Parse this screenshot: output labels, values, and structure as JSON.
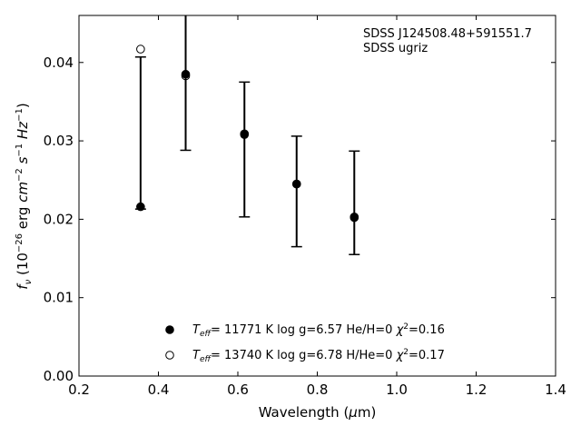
{
  "chart_data": {
    "type": "scatter",
    "xlabel": "Wavelength (μm)",
    "ylabel": "f_ν (10^-26 erg cm^-2 s^-1 Hz^-1)",
    "xlim": [
      0.2,
      1.4
    ],
    "ylim": [
      0.0,
      0.046
    ],
    "xticks": [
      "0.2",
      "0.4",
      "0.6",
      "0.8",
      "1.0",
      "1.2",
      "1.4"
    ],
    "yticks": [
      "0.00",
      "0.01",
      "0.02",
      "0.03",
      "0.04"
    ],
    "grid": false,
    "annotation": [
      "SDSS J124508.48+591551.7",
      "SDSS ugriz"
    ],
    "observed": {
      "x": [
        0.3551,
        0.4686,
        0.6166,
        0.748,
        0.8932
      ],
      "y": [
        0.0213,
        0.0387,
        0.0309,
        0.0244,
        0.0201
      ],
      "yerr_low": [
        0.0,
        0.0099,
        0.0106,
        0.0079,
        0.0046
      ],
      "yerr_high": [
        0.0194,
        0.0099,
        0.0066,
        0.0062,
        0.0086
      ]
    },
    "series": [
      {
        "name": "T_eff= 11771 K  log g=6.57  He/H=0  χ²=0.16",
        "marker": "filled-circle",
        "x": [
          0.3551,
          0.4686,
          0.6166,
          0.748,
          0.8932
        ],
        "y": [
          0.0216,
          0.0385,
          0.0308,
          0.0245,
          0.0203
        ]
      },
      {
        "name": "T_eff= 13740 K  log g=6.78  H/He=0  χ²=0.17",
        "marker": "open-circle",
        "x": [
          0.3551,
          0.4686,
          0.6166,
          0.748,
          0.8932
        ],
        "y": [
          0.0417,
          0.0383,
          0.0309,
          0.0245,
          0.0202
        ]
      }
    ],
    "legend": {
      "entries": [
        {
          "teff_label": "T",
          "teff_sub": "eff",
          "text": "= 11771 K  log g=6.57  He/H=0  ",
          "chi": "χ",
          "chi_sup": "2",
          "chi_val": "=0.16"
        },
        {
          "teff_label": "T",
          "teff_sub": "eff",
          "text": "= 13740 K  log g=6.78  H/He=0  ",
          "chi": "χ",
          "chi_sup": "2",
          "chi_val": "=0.17"
        }
      ],
      "placement": "bottom-center"
    }
  }
}
